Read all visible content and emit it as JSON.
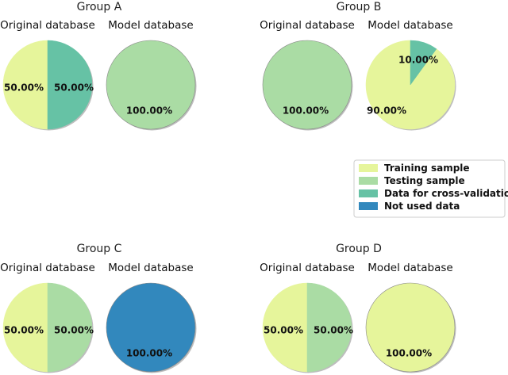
{
  "colors": {
    "training": "#e6f59b",
    "testing": "#aadca4",
    "cross": "#66c2a5",
    "notused": "#3288bd",
    "edge": "#888888"
  },
  "legend": {
    "items": [
      {
        "label": "Training sample",
        "color": "#e6f59b"
      },
      {
        "label": "Testing sample",
        "color": "#aadca4"
      },
      {
        "label": "Data for cross-validation",
        "color": "#66c2a5"
      },
      {
        "label": "Not used data",
        "color": "#3288bd"
      }
    ]
  },
  "chart_data": [
    {
      "type": "pie",
      "group": "Group A",
      "title": "Original database",
      "slices": [
        {
          "label": "Training sample",
          "value": 50.0,
          "text": "50.00%",
          "color": "#e6f59b"
        },
        {
          "label": "Data for cross-validation",
          "value": 50.0,
          "text": "50.00%",
          "color": "#66c2a5"
        }
      ]
    },
    {
      "type": "pie",
      "group": "Group A",
      "title": "Model database",
      "slices": [
        {
          "label": "Testing sample",
          "value": 100.0,
          "text": "100.00%",
          "color": "#aadca4"
        }
      ]
    },
    {
      "type": "pie",
      "group": "Group B",
      "title": "Original database",
      "slices": [
        {
          "label": "Testing sample",
          "value": 100.0,
          "text": "100.00%",
          "color": "#aadca4"
        }
      ]
    },
    {
      "type": "pie",
      "group": "Group B",
      "title": "Model database",
      "slices": [
        {
          "label": "Training sample",
          "value": 90.0,
          "text": "90.00%",
          "color": "#e6f59b"
        },
        {
          "label": "Data for cross-validation",
          "value": 10.0,
          "text": "10.00%",
          "color": "#66c2a5"
        }
      ]
    },
    {
      "type": "pie",
      "group": "Group C",
      "title": "Original database",
      "slices": [
        {
          "label": "Training sample",
          "value": 50.0,
          "text": "50.00%",
          "color": "#e6f59b"
        },
        {
          "label": "Testing sample",
          "value": 50.0,
          "text": "50.00%",
          "color": "#aadca4"
        }
      ]
    },
    {
      "type": "pie",
      "group": "Group C",
      "title": "Model database",
      "slices": [
        {
          "label": "Not used data",
          "value": 100.0,
          "text": "100.00%",
          "color": "#3288bd"
        }
      ]
    },
    {
      "type": "pie",
      "group": "Group D",
      "title": "Original database",
      "slices": [
        {
          "label": "Training sample",
          "value": 50.0,
          "text": "50.00%",
          "color": "#e6f59b"
        },
        {
          "label": "Testing sample",
          "value": 50.0,
          "text": "50.00%",
          "color": "#aadca4"
        }
      ]
    },
    {
      "type": "pie",
      "group": "Group D",
      "title": "Model database",
      "slices": [
        {
          "label": "Training sample",
          "value": 100.0,
          "text": "100.00%",
          "color": "#e6f59b"
        }
      ]
    }
  ],
  "groups": [
    {
      "title": "Group A"
    },
    {
      "title": "Group B"
    },
    {
      "title": "Group C"
    },
    {
      "title": "Group D"
    }
  ]
}
